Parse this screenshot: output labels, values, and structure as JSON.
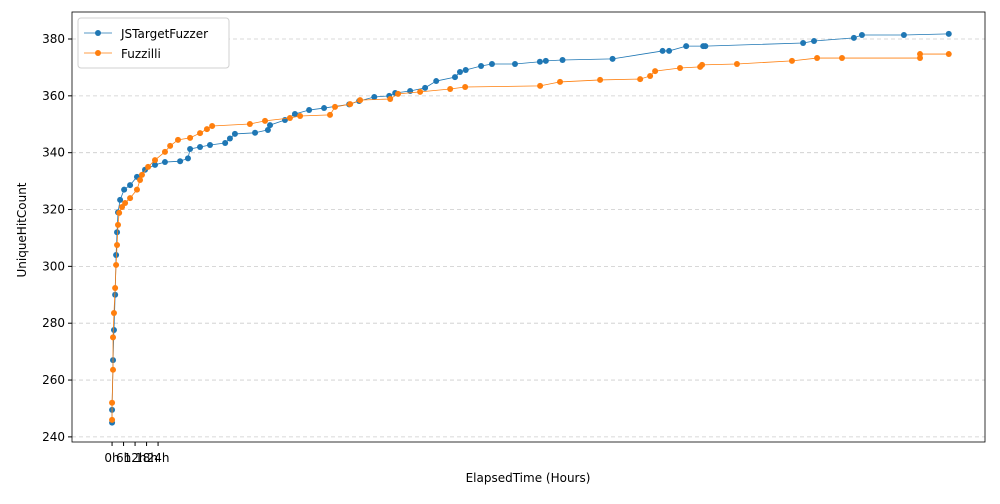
{
  "chart_data": {
    "type": "line",
    "x_label": "ElapsedTime (Hours)",
    "y_label": "UniqueHitCount",
    "xlim": [
      -20.9,
      455.4
    ],
    "ylim": [
      238.2,
      389.5
    ],
    "xticks": [
      {
        "value": 0,
        "label": "0h"
      },
      {
        "value": 6,
        "label": "6h"
      },
      {
        "value": 12,
        "label": "12h"
      },
      {
        "value": 18,
        "label": "18h"
      },
      {
        "value": 24,
        "label": "24h"
      }
    ],
    "yticks": [
      240,
      260,
      280,
      300,
      320,
      340,
      360,
      380
    ],
    "grid": true,
    "legend": "upper left",
    "series": [
      {
        "name": "JSTargetFuzzer",
        "color": "#1f77b4",
        "x": [
          0,
          0,
          0.5,
          1,
          1.6,
          2.1,
          2.6,
          3.1,
          4.2,
          6.3,
          9.4,
          13,
          17.2,
          22.4,
          27.6,
          35.5,
          39.6,
          40.7,
          45.9,
          51.1,
          59,
          61.5,
          64.1,
          74.6,
          81.3,
          82.4,
          90.2,
          95.4,
          102.8,
          110.6,
          123.7,
          128.9,
          136.8,
          144.6,
          147.7,
          155.5,
          163.3,
          169.1,
          178.9,
          181.5,
          184.5,
          192.5,
          198.2,
          210.2,
          223.2,
          226.3,
          235,
          261.1,
          287.2,
          290.6,
          299.5,
          308.4,
          309.5,
          360.5,
          366.2,
          387,
          391.2,
          413.1,
          436.5
        ],
        "values": [
          245,
          249.5,
          267,
          277.6,
          290,
          304,
          312,
          319,
          323.4,
          327,
          328.6,
          331.5,
          334,
          335.7,
          336.7,
          337,
          338,
          341.3,
          342,
          342.7,
          343.4,
          345,
          346.6,
          347,
          348,
          349.7,
          351.5,
          353.6,
          355,
          355.7,
          357,
          358.2,
          359.6,
          360,
          361,
          361.7,
          362.8,
          365.2,
          366.6,
          368.4,
          369.1,
          370.5,
          371.2,
          371.2,
          372,
          372.3,
          372.6,
          373,
          375.8,
          375.8,
          377.5,
          377.5,
          377.5,
          378.6,
          379.3,
          380.4,
          381.4,
          381.4,
          381.8
        ]
      },
      {
        "name": "Fuzzilli",
        "color": "#ff7f0e",
        "x": [
          0,
          0,
          0.5,
          0.5,
          1,
          1.6,
          2.1,
          2.6,
          3.1,
          3.7,
          5.2,
          6.8,
          9.4,
          13,
          14.6,
          15.6,
          18.8,
          22.4,
          27.6,
          30.3,
          34.4,
          40.7,
          45.9,
          49.5,
          52.2,
          71.9,
          79.8,
          92.8,
          98.1,
          113.7,
          116.3,
          124.2,
          129.4,
          145.1,
          149.2,
          160.7,
          176.4,
          184.2,
          223.3,
          233.7,
          254.6,
          275.5,
          280.7,
          283.3,
          296.3,
          306.8,
          307.8,
          326,
          354.7,
          367.8,
          380.8,
          421.5,
          421.5,
          436.5
        ],
        "values": [
          246,
          252,
          263.6,
          275,
          283.6,
          292.4,
          300.5,
          307.5,
          314.6,
          318.8,
          320.9,
          322.3,
          324,
          327,
          330.4,
          332.2,
          335,
          337.4,
          340.3,
          342.4,
          344.5,
          345.2,
          346.9,
          348.3,
          349.4,
          350.1,
          351.2,
          352.2,
          352.9,
          353.3,
          356.1,
          357.1,
          358.5,
          358.9,
          360.7,
          361.4,
          362.4,
          363.1,
          363.5,
          364.9,
          365.6,
          365.9,
          367,
          368.7,
          369.8,
          370.2,
          370.9,
          371.2,
          372.3,
          373.3,
          373.3,
          373.3,
          374.7,
          374.7
        ]
      }
    ]
  }
}
